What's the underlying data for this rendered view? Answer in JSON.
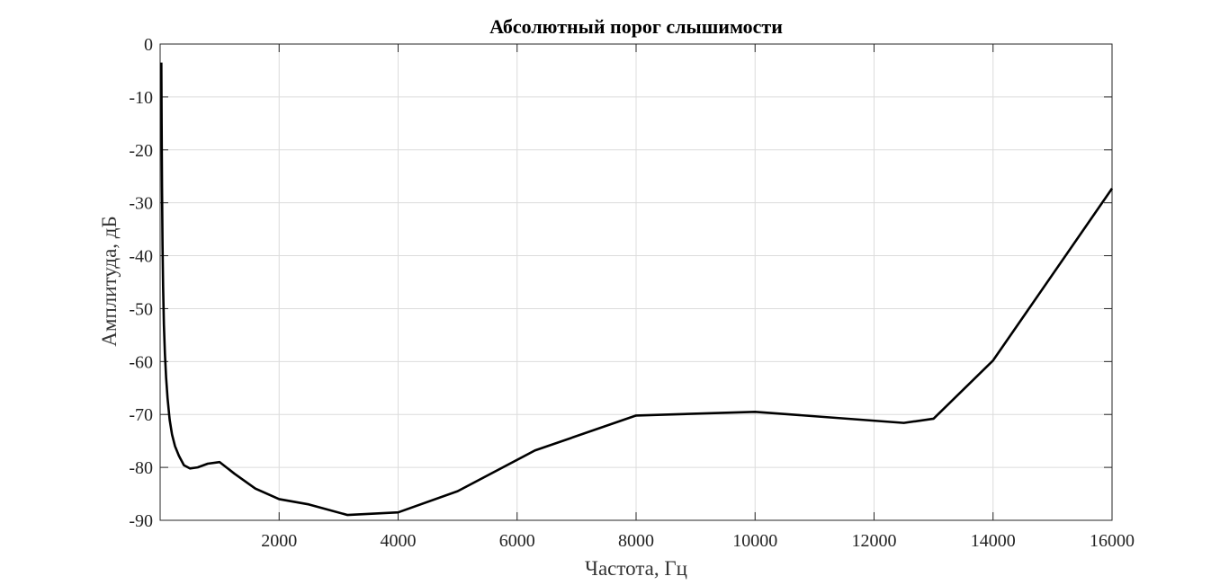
{
  "chart_data": {
    "type": "line",
    "title": "Абсолютный порог слышимости",
    "xlabel": "Частота, Гц",
    "ylabel": "Амплитуда, дБ",
    "xlim": [
      0,
      16000
    ],
    "ylim": [
      -90,
      0
    ],
    "grid": true,
    "x_ticks": [
      2000,
      4000,
      6000,
      8000,
      10000,
      12000,
      14000,
      16000
    ],
    "x_tick_labels": [
      "2000",
      "4000",
      "6000",
      "8000",
      "10000",
      "12000",
      "14000",
      "16000"
    ],
    "y_ticks": [
      0,
      -10,
      -20,
      -30,
      -40,
      -50,
      -60,
      -70,
      -80,
      -90
    ],
    "y_tick_labels": [
      "0",
      "-10",
      "-20",
      "-30",
      "-40",
      "-50",
      "-60",
      "-70",
      "-80",
      "-90"
    ],
    "series": [
      {
        "color": "#000000",
        "x": [
          20,
          25,
          31.5,
          40,
          50,
          63,
          80,
          100,
          125,
          160,
          200,
          250,
          315,
          400,
          500,
          630,
          800,
          1000,
          1250,
          1600,
          2000,
          2500,
          3150,
          4000,
          5000,
          6300,
          8000,
          10000,
          12500,
          13000,
          14000,
          16000
        ],
        "y": [
          -3.5,
          -15,
          -27,
          -38,
          -46,
          -53,
          -58.5,
          -63,
          -67,
          -71,
          -73.8,
          -76,
          -77.8,
          -79.6,
          -80.2,
          -80.0,
          -79.3,
          -79.0,
          -81.2,
          -84.0,
          -86.0,
          -87.0,
          -89.0,
          -88.5,
          -84.5,
          -76.8,
          -70.2,
          -69.5,
          -71.6,
          -70.8,
          -59.8,
          -27.3
        ]
      }
    ]
  }
}
